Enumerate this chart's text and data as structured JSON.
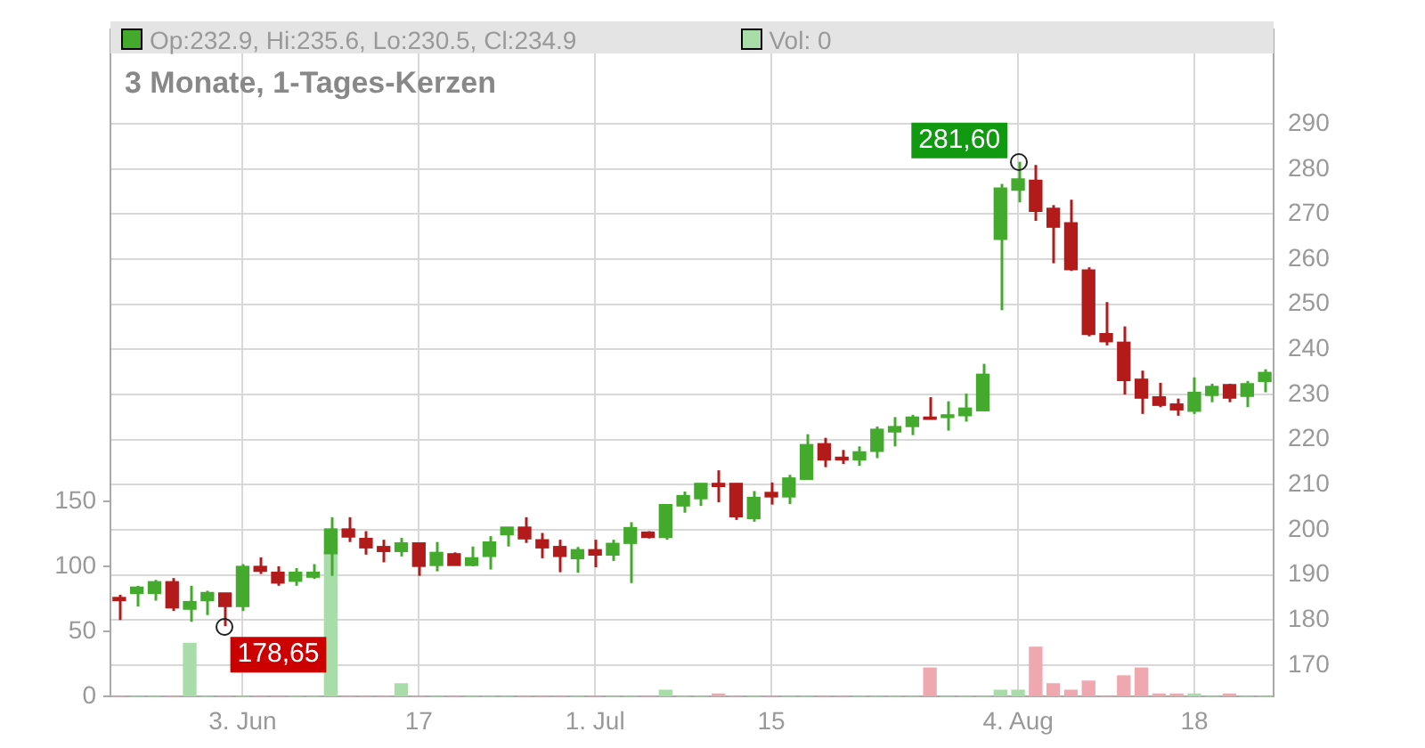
{
  "chart_data": {
    "type": "candlestick",
    "title": "3 Monate, 1-Tages-Kerzen",
    "categories": [
      null,
      null,
      null,
      null,
      null,
      null,
      null,
      "3. Jun",
      null,
      null,
      null,
      null,
      null,
      null,
      null,
      null,
      null,
      "17",
      null,
      null,
      null,
      null,
      null,
      null,
      null,
      null,
      null,
      "1. Jul",
      null,
      null,
      null,
      null,
      null,
      null,
      null,
      null,
      null,
      "15",
      null,
      null,
      null,
      null,
      null,
      null,
      null,
      null,
      null,
      null,
      null,
      null,
      null,
      "4. Aug",
      null,
      null,
      null,
      null,
      null,
      null,
      null,
      null,
      null,
      "18",
      null,
      null,
      null,
      null
    ],
    "ohlc": [
      [
        185.0,
        185.6,
        180.0,
        184.3
      ],
      [
        185.9,
        187.6,
        183.0,
        187.3
      ],
      [
        185.9,
        188.9,
        184.3,
        188.5
      ],
      [
        188.5,
        189.3,
        182.0,
        182.7
      ],
      [
        182.4,
        187.6,
        179.6,
        184.1
      ],
      [
        184.3,
        186.5,
        181.1,
        186.1
      ],
      [
        186.0,
        186.0,
        178.65,
        183.0
      ],
      [
        183.0,
        192.4,
        182.0,
        191.9
      ],
      [
        191.9,
        193.9,
        190.2,
        190.8
      ],
      [
        190.6,
        191.9,
        187.6,
        188.2
      ],
      [
        188.6,
        191.5,
        187.6,
        190.6
      ],
      [
        189.5,
        192.4,
        189.1,
        190.6
      ],
      [
        194.7,
        202.8,
        189.8,
        200.2
      ],
      [
        200.2,
        202.8,
        197.3,
        198.4
      ],
      [
        198.1,
        199.7,
        194.5,
        196.0
      ],
      [
        196.3,
        197.8,
        192.8,
        195.2
      ],
      [
        195.2,
        198.2,
        194.1,
        197.1
      ],
      [
        197.1,
        197.1,
        189.8,
        191.9
      ],
      [
        192.1,
        197.3,
        190.8,
        195.0
      ],
      [
        194.7,
        195.0,
        192.1,
        192.1
      ],
      [
        192.1,
        196.3,
        191.9,
        193.8
      ],
      [
        194.1,
        198.6,
        191.2,
        197.3
      ],
      [
        198.9,
        200.6,
        196.3,
        200.6
      ],
      [
        200.6,
        202.8,
        197.1,
        198.0
      ],
      [
        197.8,
        199.3,
        193.7,
        196.0
      ],
      [
        196.3,
        197.8,
        190.6,
        194.1
      ],
      [
        193.6,
        196.2,
        190.5,
        195.6
      ],
      [
        195.6,
        197.8,
        191.7,
        194.4
      ],
      [
        194.4,
        197.8,
        193.1,
        197.0
      ],
      [
        197.0,
        201.7,
        188.2,
        200.5
      ],
      [
        199.5,
        199.7,
        198.1,
        198.3
      ],
      [
        198.3,
        205.6,
        197.8,
        205.6
      ],
      [
        205.3,
        208.5,
        203.8,
        207.6
      ],
      [
        206.9,
        210.3,
        205.3,
        210.3
      ],
      [
        210.3,
        213.2,
        206.1,
        209.6
      ],
      [
        210.3,
        210.3,
        202.2,
        202.9
      ],
      [
        202.5,
        208.6,
        201.8,
        207.2
      ],
      [
        208.3,
        210.5,
        205.6,
        207.3
      ],
      [
        207.3,
        212.2,
        205.7,
        211.5
      ],
      [
        211.2,
        221.2,
        211.2,
        218.9
      ],
      [
        219.1,
        220.4,
        213.9,
        215.5
      ],
      [
        216.1,
        217.7,
        214.6,
        215.5
      ],
      [
        215.5,
        218.5,
        214.2,
        217.3
      ],
      [
        217.4,
        222.9,
        215.9,
        222.3
      ],
      [
        221.7,
        225.0,
        218.5,
        222.9
      ],
      [
        222.9,
        225.5,
        221.0,
        225.0
      ],
      [
        225.0,
        229.4,
        224.5,
        224.5
      ],
      [
        224.9,
        228.5,
        222.0,
        225.5
      ],
      [
        225.3,
        230.2,
        224.0,
        227.0
      ],
      [
        226.4,
        236.8,
        226.4,
        234.5
      ],
      [
        264.4,
        276.7,
        248.7,
        275.8
      ],
      [
        275.3,
        281.6,
        272.6,
        277.8
      ],
      [
        277.5,
        280.9,
        268.5,
        270.6
      ],
      [
        271.3,
        272.0,
        259.1,
        267.1
      ],
      [
        268.1,
        273.2,
        257.4,
        257.7
      ],
      [
        257.6,
        258.2,
        242.9,
        243.3
      ],
      [
        243.5,
        250.5,
        240.9,
        241.7
      ],
      [
        241.6,
        245.1,
        230.0,
        233.1
      ],
      [
        233.4,
        235.3,
        225.7,
        229.2
      ],
      [
        229.5,
        232.6,
        227.2,
        227.6
      ],
      [
        227.9,
        229.1,
        225.3,
        226.6
      ],
      [
        226.3,
        233.8,
        225.7,
        230.5
      ],
      [
        229.8,
        232.4,
        228.3,
        231.8
      ],
      [
        232.2,
        232.4,
        228.3,
        229.2
      ],
      [
        229.6,
        233.0,
        227.2,
        232.4
      ],
      [
        232.9,
        235.6,
        230.5,
        234.9
      ]
    ],
    "colors": [
      "#b31b1b",
      "#44aa2e",
      "#44aa2e",
      "#b31b1b",
      "#44aa2e",
      "#44aa2e",
      "#b31b1b",
      "#44aa2e",
      "#b31b1b",
      "#b31b1b",
      "#44aa2e",
      "#44aa2e",
      "#44aa2e",
      "#b31b1b",
      "#b31b1b",
      "#b31b1b",
      "#44aa2e",
      "#b31b1b",
      "#44aa2e",
      "#b31b1b",
      "#44aa2e",
      "#44aa2e",
      "#44aa2e",
      "#b31b1b",
      "#b31b1b",
      "#b31b1b",
      "#44aa2e",
      "#b31b1b",
      "#44aa2e",
      "#44aa2e",
      "#b31b1b",
      "#44aa2e",
      "#44aa2e",
      "#44aa2e",
      "#b31b1b",
      "#b31b1b",
      "#44aa2e",
      "#b31b1b",
      "#44aa2e",
      "#44aa2e",
      "#b31b1b",
      "#b31b1b",
      "#44aa2e",
      "#44aa2e",
      "#44aa2e",
      "#44aa2e",
      "#b31b1b",
      "#44aa2e",
      "#44aa2e",
      "#44aa2e",
      "#44aa2e",
      "#44aa2e",
      "#b31b1b",
      "#b31b1b",
      "#b31b1b",
      "#b31b1b",
      "#b31b1b",
      "#b31b1b",
      "#b31b1b",
      "#b31b1b",
      "#b31b1b",
      "#44aa2e",
      "#44aa2e",
      "#b31b1b",
      "#44aa2e",
      "#44aa2e"
    ],
    "series": [
      {
        "type": "bar",
        "axis": "y2",
        "values": [
          0,
          0,
          0,
          0,
          41,
          0,
          0,
          0,
          0,
          0,
          0,
          0,
          111,
          0,
          0,
          0,
          10,
          0,
          0,
          0,
          0,
          0,
          0,
          0,
          0,
          0,
          0,
          0,
          0,
          0,
          0,
          5,
          0,
          0,
          2,
          0,
          0,
          0,
          0,
          0,
          0,
          0,
          0,
          0,
          0,
          0,
          22,
          0,
          0,
          0,
          5,
          5,
          38,
          10,
          5,
          12,
          0,
          16,
          22,
          2,
          2,
          2,
          0,
          2,
          0,
          0
        ],
        "colors": [
          "#f0a8b0",
          "#a8dca8",
          "#a8dca8",
          "#f0a8b0",
          "#a8dca8",
          "#a8dca8",
          "#f0a8b0",
          "#a8dca8",
          "#f0a8b0",
          "#f0a8b0",
          "#a8dca8",
          "#a8dca8",
          "#a8dca8",
          "#f0a8b0",
          "#f0a8b0",
          "#f0a8b0",
          "#a8dca8",
          "#f0a8b0",
          "#a8dca8",
          "#f0a8b0",
          "#a8dca8",
          "#a8dca8",
          "#a8dca8",
          "#f0a8b0",
          "#f0a8b0",
          "#f0a8b0",
          "#a8dca8",
          "#f0a8b0",
          "#a8dca8",
          "#a8dca8",
          "#f0a8b0",
          "#a8dca8",
          "#a8dca8",
          "#a8dca8",
          "#f0a8b0",
          "#f0a8b0",
          "#a8dca8",
          "#f0a8b0",
          "#a8dca8",
          "#a8dca8",
          "#f0a8b0",
          "#f0a8b0",
          "#a8dca8",
          "#a8dca8",
          "#a8dca8",
          "#a8dca8",
          "#f0a8b0",
          "#a8dca8",
          "#a8dca8",
          "#a8dca8",
          "#a8dca8",
          "#a8dca8",
          "#f0a8b0",
          "#f0a8b0",
          "#f0a8b0",
          "#f0a8b0",
          "#f0a8b0",
          "#f0a8b0",
          "#f0a8b0",
          "#f0a8b0",
          "#f0a8b0",
          "#a8dca8",
          "#a8dca8",
          "#f0a8b0",
          "#a8dca8",
          "#a8dca8"
        ]
      }
    ],
    "ylim": [
      163,
      311
    ],
    "yticks": [
      170,
      180,
      190,
      200,
      210,
      220,
      230,
      240,
      250,
      260,
      270,
      280,
      290
    ],
    "y2lim": [
      0,
      513
    ],
    "y2ticks": [
      0,
      50,
      100,
      150
    ],
    "grid": true,
    "annotations": [
      "Op:232.9, Hi:235.6, Lo:230.5, Cl:234.9",
      "Vol: 0",
      "178,65",
      "281,60"
    ]
  }
}
